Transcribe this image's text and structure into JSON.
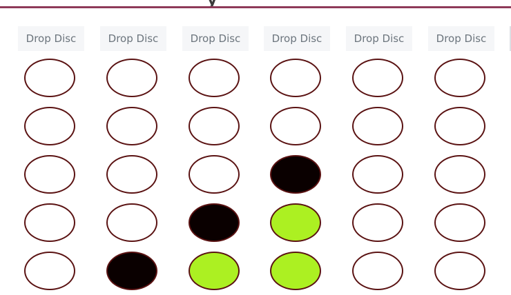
{
  "colors": {
    "empty": "#ffffff",
    "black": "#0a0000",
    "green": "#acf022",
    "disc_border": "#5a1212",
    "header_rule": "#8e3a59",
    "button_bg": "#f5f6f8",
    "button_text": "#6c757d"
  },
  "header": {
    "title_fragment": "y"
  },
  "columns": [
    {
      "button_label": "Drop Disc",
      "cells": [
        "empty",
        "empty",
        "empty",
        "empty",
        "empty"
      ]
    },
    {
      "button_label": "Drop Disc",
      "cells": [
        "empty",
        "empty",
        "empty",
        "empty",
        "black"
      ]
    },
    {
      "button_label": "Drop Disc",
      "cells": [
        "empty",
        "empty",
        "empty",
        "black",
        "green"
      ]
    },
    {
      "button_label": "Drop Disc",
      "cells": [
        "empty",
        "empty",
        "black",
        "green",
        "green"
      ]
    },
    {
      "button_label": "Drop Disc",
      "cells": [
        "empty",
        "empty",
        "empty",
        "empty",
        "empty"
      ]
    },
    {
      "button_label": "Drop Disc",
      "cells": [
        "empty",
        "empty",
        "empty",
        "empty",
        "empty"
      ]
    }
  ]
}
